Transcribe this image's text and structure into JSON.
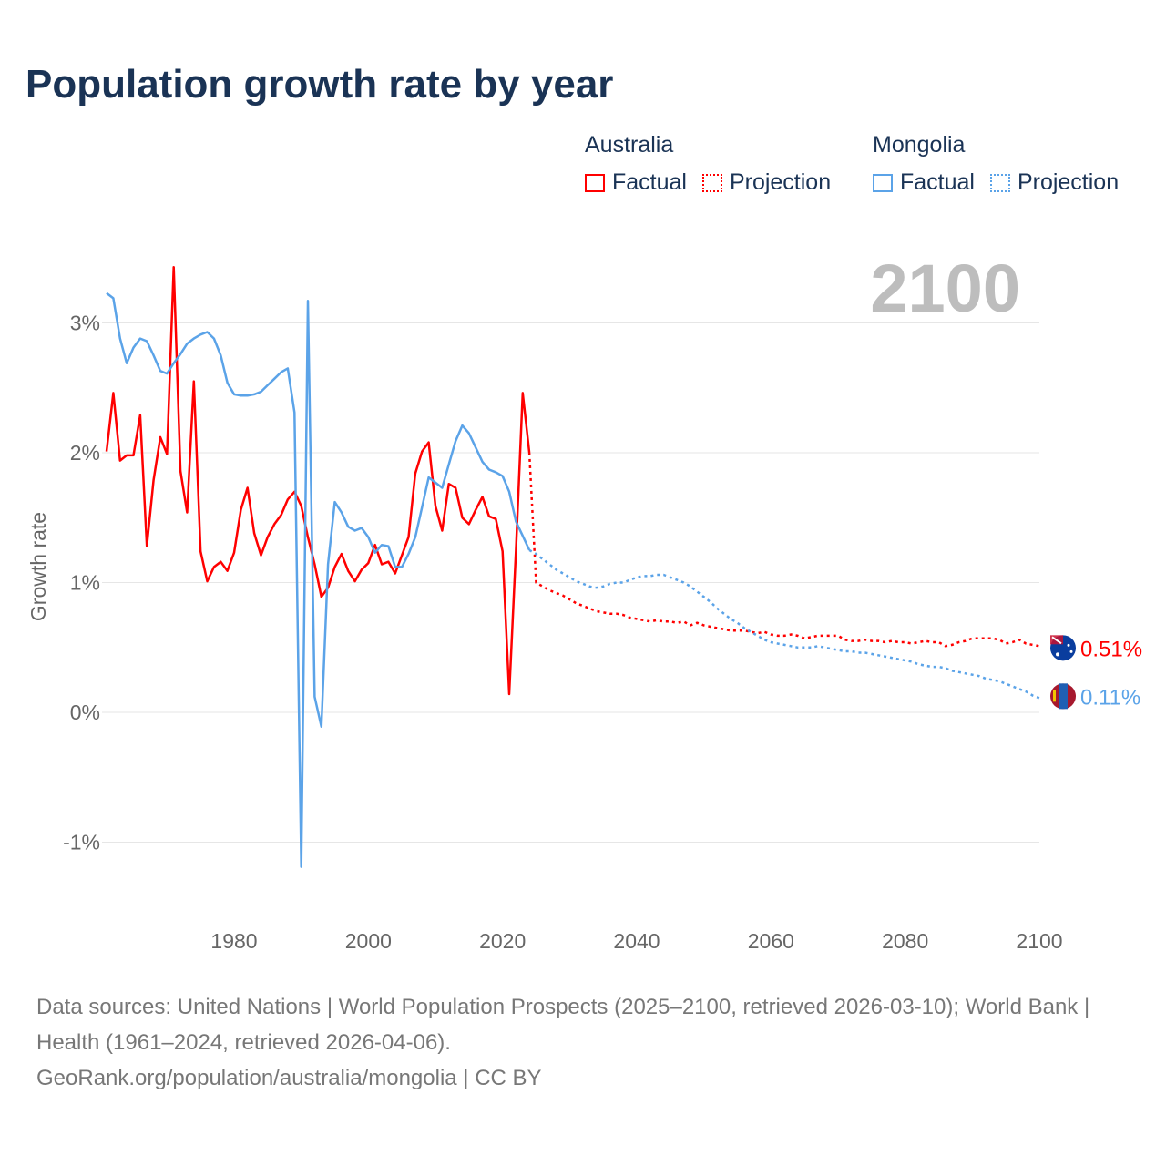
{
  "title": "Population growth rate by year",
  "legend": {
    "groups": [
      {
        "name": "Australia",
        "factual": "Factual",
        "projection": "Projection",
        "color": "#ff0000"
      },
      {
        "name": "Mongolia",
        "factual": "Factual",
        "projection": "Projection",
        "color": "#5ba3e8"
      }
    ]
  },
  "year_badge": "2100",
  "footer": {
    "sources": "Data sources: United Nations | World Population Prospects (2025–2100, retrieved 2026-03-10); World Bank | Health (1961–2024, retrieved 2026-04-06).",
    "credit": "GeoRank.org/population/australia/mongolia | CC BY"
  },
  "chart_data": {
    "type": "line",
    "title": "Population growth rate by year",
    "xlabel": "",
    "ylabel": "Growth rate",
    "xlim": [
      1961,
      2100
    ],
    "ylim": [
      -1.3,
      3.5
    ],
    "x_ticks": [
      1980,
      2000,
      2020,
      2040,
      2060,
      2080,
      2100
    ],
    "y_ticks": [
      {
        "v": 3,
        "label": "3%"
      },
      {
        "v": 2,
        "label": "2%"
      },
      {
        "v": 1,
        "label": "1%"
      },
      {
        "v": 0,
        "label": "0%"
      },
      {
        "v": -1,
        "label": "-1%"
      }
    ],
    "grid": true,
    "legend_position": "top-right",
    "series": [
      {
        "name": "Australia",
        "kind": "factual",
        "color": "#ff0000",
        "start_year": 1961,
        "values": [
          2.01,
          2.46,
          1.94,
          1.98,
          1.98,
          2.29,
          1.28,
          1.79,
          2.12,
          1.99,
          3.43,
          1.86,
          1.54,
          2.55,
          1.24,
          1.01,
          1.12,
          1.16,
          1.09,
          1.23,
          1.56,
          1.73,
          1.38,
          1.21,
          1.35,
          1.45,
          1.52,
          1.64,
          1.7,
          1.59,
          1.35,
          1.14,
          0.89,
          0.96,
          1.12,
          1.22,
          1.09,
          1.01,
          1.1,
          1.15,
          1.29,
          1.14,
          1.16,
          1.07,
          1.21,
          1.35,
          1.84,
          2.01,
          2.08,
          1.59,
          1.4,
          1.76,
          1.73,
          1.5,
          1.45,
          1.56,
          1.66,
          1.51,
          1.49,
          1.24,
          0.14,
          1.25,
          2.46,
          2.0
        ]
      },
      {
        "name": "Australia",
        "kind": "projection",
        "color": "#ff0000",
        "start_year": 2024,
        "values": [
          2.0,
          1.0,
          0.97,
          0.94,
          0.92,
          0.9,
          0.87,
          0.84,
          0.82,
          0.8,
          0.78,
          0.77,
          0.76,
          0.76,
          0.75,
          0.73,
          0.72,
          0.71,
          0.7,
          0.71,
          0.7,
          0.7,
          0.69,
          0.7,
          0.67,
          0.69,
          0.67,
          0.66,
          0.65,
          0.64,
          0.63,
          0.63,
          0.63,
          0.62,
          0.61,
          0.62,
          0.6,
          0.59,
          0.59,
          0.6,
          0.59,
          0.57,
          0.58,
          0.59,
          0.59,
          0.59,
          0.59,
          0.56,
          0.55,
          0.55,
          0.56,
          0.55,
          0.55,
          0.54,
          0.55,
          0.54,
          0.54,
          0.53,
          0.54,
          0.55,
          0.54,
          0.54,
          0.51,
          0.52,
          0.54,
          0.55,
          0.57,
          0.57,
          0.57,
          0.57,
          0.56,
          0.53,
          0.54,
          0.56,
          0.53,
          0.52,
          0.51
        ]
      },
      {
        "name": "Mongolia",
        "kind": "factual",
        "color": "#5ba3e8",
        "start_year": 1961,
        "values": [
          3.23,
          3.19,
          2.88,
          2.69,
          2.81,
          2.88,
          2.86,
          2.75,
          2.63,
          2.61,
          2.69,
          2.76,
          2.84,
          2.88,
          2.91,
          2.93,
          2.88,
          2.75,
          2.54,
          2.45,
          2.44,
          2.44,
          2.45,
          2.47,
          2.52,
          2.57,
          2.62,
          2.65,
          2.31,
          -1.19,
          3.17,
          0.12,
          -0.11,
          1.14,
          1.62,
          1.54,
          1.43,
          1.4,
          1.42,
          1.35,
          1.23,
          1.29,
          1.28,
          1.12,
          1.12,
          1.22,
          1.35,
          1.58,
          1.81,
          1.77,
          1.73,
          1.91,
          2.09,
          2.21,
          2.15,
          2.04,
          1.93,
          1.87,
          1.85,
          1.82,
          1.7,
          1.47,
          1.36,
          1.25
        ]
      },
      {
        "name": "Mongolia",
        "kind": "projection",
        "color": "#5ba3e8",
        "start_year": 2024,
        "values": [
          1.25,
          1.22,
          1.18,
          1.14,
          1.1,
          1.07,
          1.04,
          1.01,
          0.99,
          0.97,
          0.96,
          0.97,
          0.99,
          1.0,
          1.0,
          1.02,
          1.04,
          1.05,
          1.05,
          1.06,
          1.06,
          1.04,
          1.02,
          1.0,
          0.97,
          0.93,
          0.89,
          0.85,
          0.8,
          0.76,
          0.72,
          0.69,
          0.65,
          0.62,
          0.59,
          0.56,
          0.54,
          0.53,
          0.52,
          0.51,
          0.5,
          0.5,
          0.5,
          0.51,
          0.5,
          0.49,
          0.48,
          0.47,
          0.47,
          0.46,
          0.46,
          0.45,
          0.44,
          0.43,
          0.42,
          0.41,
          0.4,
          0.39,
          0.37,
          0.36,
          0.35,
          0.35,
          0.34,
          0.32,
          0.31,
          0.3,
          0.29,
          0.28,
          0.26,
          0.25,
          0.24,
          0.22,
          0.2,
          0.18,
          0.16,
          0.13,
          0.11
        ]
      }
    ],
    "end_labels": [
      {
        "country": "Australia",
        "label": "0.51%",
        "value": 0.51,
        "color": "#ff0000"
      },
      {
        "country": "Mongolia",
        "label": "0.11%",
        "value": 0.11,
        "color": "#5ba3e8"
      }
    ]
  }
}
